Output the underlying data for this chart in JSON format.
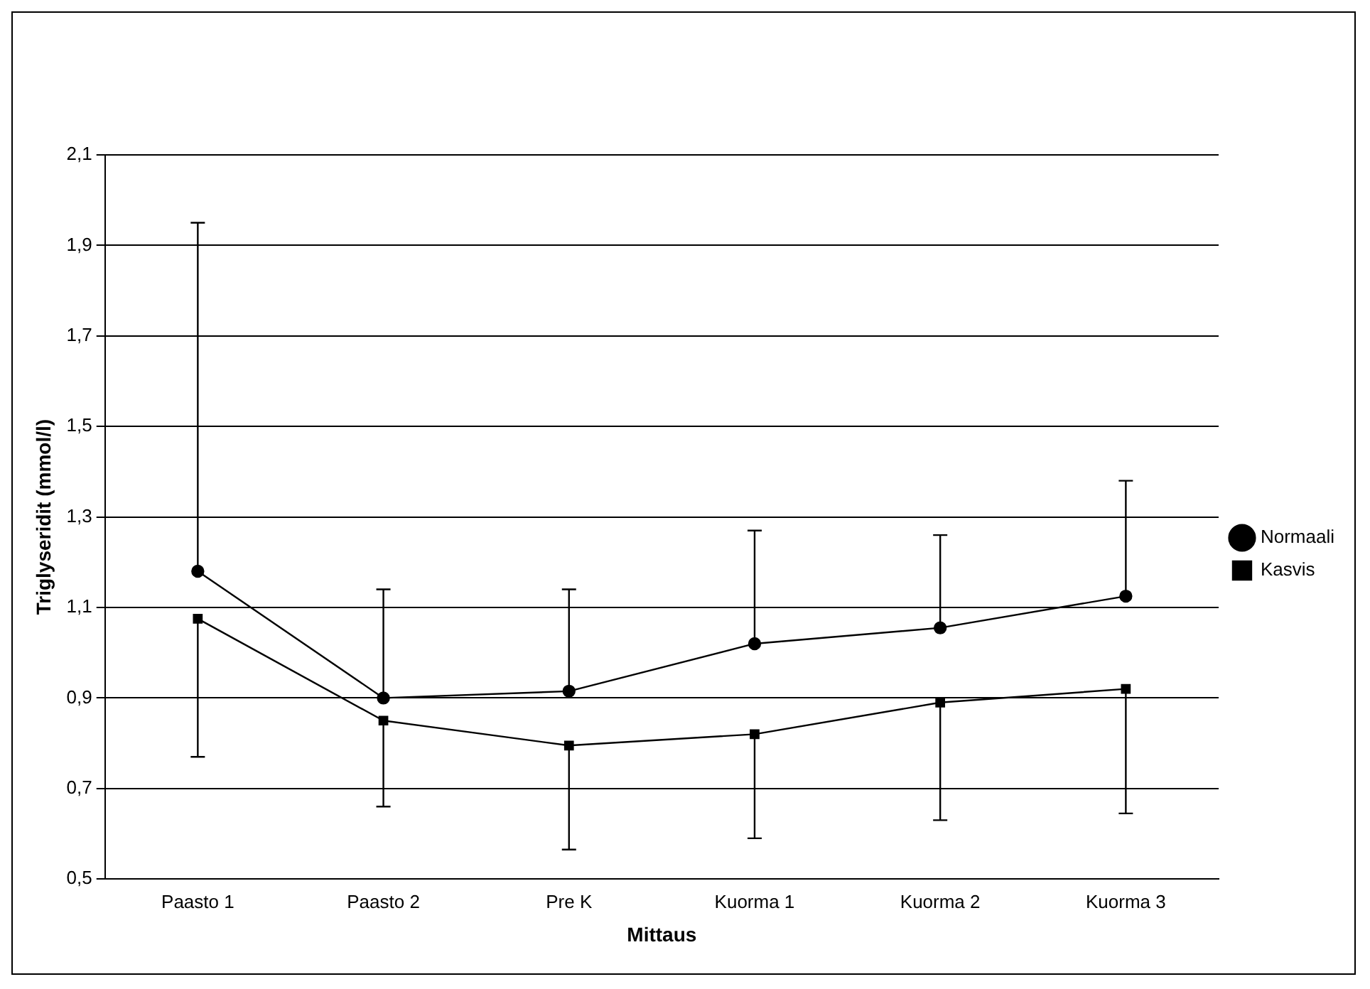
{
  "chart_data": {
    "type": "line",
    "xlabel": "Mittaus",
    "ylabel": "Triglyseridit (mmol/l)",
    "categories": [
      "Paasto 1",
      "Paasto 2",
      "Pre K",
      "Kuorma 1",
      "Kuorma 2",
      "Kuorma 3"
    ],
    "series": [
      {
        "name": "Normaali",
        "color": "#000000",
        "marker": "circle",
        "values": [
          1.18,
          0.9,
          0.915,
          1.02,
          1.055,
          1.125
        ],
        "errors": [
          [
            1.18,
            1.95
          ],
          [
            0.9,
            1.14
          ],
          [
            0.915,
            1.14
          ],
          [
            1.02,
            1.27
          ],
          [
            1.055,
            1.26
          ],
          [
            1.125,
            1.38
          ]
        ]
      },
      {
        "name": "Kasvis",
        "color": "#000000",
        "marker": "square",
        "values": [
          1.075,
          0.85,
          0.795,
          0.82,
          0.89,
          0.92
        ],
        "errors": [
          [
            0.77,
            1.075
          ],
          [
            0.66,
            0.85
          ],
          [
            0.565,
            0.795
          ],
          [
            0.59,
            0.82
          ],
          [
            0.63,
            0.89
          ],
          [
            0.645,
            0.92
          ]
        ]
      }
    ],
    "ylim": [
      0.5,
      2.1
    ],
    "yticks": [
      {
        "value": 0.5,
        "label": "0,5"
      },
      {
        "value": 0.7,
        "label": "0,7"
      },
      {
        "value": 0.9,
        "label": "0,9"
      },
      {
        "value": 1.1,
        "label": "1,1"
      },
      {
        "value": 1.3,
        "label": "1,3"
      },
      {
        "value": 1.5,
        "label": "1,5"
      },
      {
        "value": 1.7,
        "label": "1,7"
      },
      {
        "value": 1.9,
        "label": "1,9"
      },
      {
        "value": 2.1,
        "label": "2,1"
      }
    ],
    "grid": "y",
    "legend": "right",
    "line_style": "solid"
  }
}
